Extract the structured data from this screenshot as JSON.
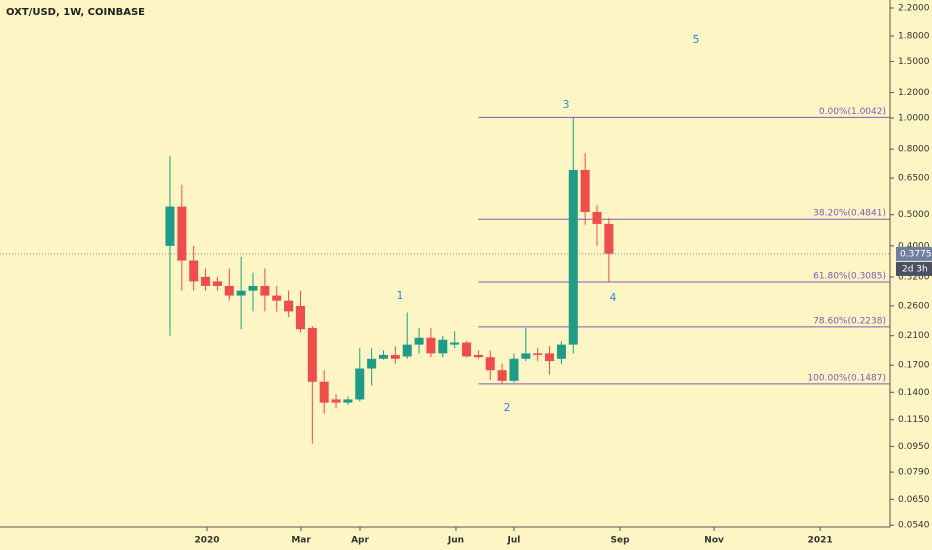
{
  "chart_data": {
    "type": "candlestick",
    "title": "OXT/USD, 1W, COINBASE",
    "log_scale": true,
    "up_color": "#1f9c86",
    "down_color": "#ef4c4c",
    "candles": [
      {
        "open": 0.4,
        "high": 0.76,
        "low": 0.21,
        "close": 0.53
      },
      {
        "open": 0.53,
        "high": 0.62,
        "low": 0.29,
        "close": 0.36
      },
      {
        "open": 0.36,
        "high": 0.4,
        "low": 0.29,
        "close": 0.31
      },
      {
        "open": 0.32,
        "high": 0.34,
        "low": 0.29,
        "close": 0.3
      },
      {
        "open": 0.31,
        "high": 0.32,
        "low": 0.29,
        "close": 0.3
      },
      {
        "open": 0.3,
        "high": 0.34,
        "low": 0.27,
        "close": 0.28
      },
      {
        "open": 0.28,
        "high": 0.37,
        "low": 0.22,
        "close": 0.29
      },
      {
        "open": 0.29,
        "high": 0.33,
        "low": 0.25,
        "close": 0.3
      },
      {
        "open": 0.3,
        "high": 0.34,
        "low": 0.25,
        "close": 0.28
      },
      {
        "open": 0.28,
        "high": 0.3,
        "low": 0.25,
        "close": 0.27
      },
      {
        "open": 0.27,
        "high": 0.29,
        "low": 0.24,
        "close": 0.25
      },
      {
        "open": 0.26,
        "high": 0.29,
        "low": 0.215,
        "close": 0.22
      },
      {
        "open": 0.222,
        "high": 0.225,
        "low": 0.097,
        "close": 0.151
      },
      {
        "open": 0.151,
        "high": 0.164,
        "low": 0.12,
        "close": 0.13
      },
      {
        "open": 0.133,
        "high": 0.138,
        "low": 0.125,
        "close": 0.13
      },
      {
        "open": 0.13,
        "high": 0.136,
        "low": 0.128,
        "close": 0.133
      },
      {
        "open": 0.133,
        "high": 0.192,
        "low": 0.131,
        "close": 0.166
      },
      {
        "open": 0.166,
        "high": 0.192,
        "low": 0.147,
        "close": 0.178
      },
      {
        "open": 0.178,
        "high": 0.189,
        "low": 0.177,
        "close": 0.183
      },
      {
        "open": 0.183,
        "high": 0.195,
        "low": 0.172,
        "close": 0.178
      },
      {
        "open": 0.181,
        "high": 0.248,
        "low": 0.178,
        "close": 0.197
      },
      {
        "open": 0.197,
        "high": 0.222,
        "low": 0.185,
        "close": 0.207
      },
      {
        "open": 0.207,
        "high": 0.222,
        "low": 0.18,
        "close": 0.185
      },
      {
        "open": 0.185,
        "high": 0.21,
        "low": 0.18,
        "close": 0.204
      },
      {
        "open": 0.197,
        "high": 0.217,
        "low": 0.192,
        "close": 0.2
      },
      {
        "open": 0.2,
        "high": 0.202,
        "low": 0.18,
        "close": 0.181
      },
      {
        "open": 0.183,
        "high": 0.189,
        "low": 0.178,
        "close": 0.18
      },
      {
        "open": 0.18,
        "high": 0.189,
        "low": 0.153,
        "close": 0.164
      },
      {
        "open": 0.164,
        "high": 0.172,
        "low": 0.148,
        "close": 0.152
      },
      {
        "open": 0.152,
        "high": 0.185,
        "low": 0.15,
        "close": 0.178
      },
      {
        "open": 0.178,
        "high": 0.222,
        "low": 0.175,
        "close": 0.185
      },
      {
        "open": 0.185,
        "high": 0.192,
        "low": 0.175,
        "close": 0.183
      },
      {
        "open": 0.185,
        "high": 0.195,
        "low": 0.159,
        "close": 0.175
      },
      {
        "open": 0.178,
        "high": 0.202,
        "low": 0.171,
        "close": 0.197
      },
      {
        "open": 0.197,
        "high": 1.0,
        "low": 0.185,
        "close": 0.689
      },
      {
        "open": 0.689,
        "high": 0.778,
        "low": 0.465,
        "close": 0.51
      },
      {
        "open": 0.51,
        "high": 0.536,
        "low": 0.4,
        "close": 0.468
      },
      {
        "open": 0.468,
        "high": 0.488,
        "low": 0.31,
        "close": 0.378
      }
    ],
    "xlim": [
      -14.33,
      60.7
    ],
    "xticks": [
      {
        "value": 3.12,
        "label": "2020"
      },
      {
        "value": 11.05,
        "label": "Mar"
      },
      {
        "value": 16.02,
        "label": "Apr"
      },
      {
        "value": 24.11,
        "label": "Jun"
      },
      {
        "value": 29.0,
        "label": "Jul"
      },
      {
        "value": 37.94,
        "label": "Sep"
      },
      {
        "value": 45.87,
        "label": "Nov"
      },
      {
        "value": 54.81,
        "label": "2021"
      }
    ],
    "ylim": [
      0.0533,
      2.33
    ],
    "yticks": [
      {
        "value": 2.2,
        "label": "2.2000"
      },
      {
        "value": 1.8,
        "label": "1.8000"
      },
      {
        "value": 1.5,
        "label": "1.5000"
      },
      {
        "value": 1.2,
        "label": "1.2000"
      },
      {
        "value": 1.0,
        "label": "1.0000"
      },
      {
        "value": 0.8,
        "label": "0.8000"
      },
      {
        "value": 0.65,
        "label": "0.6500"
      },
      {
        "value": 0.5,
        "label": "0.5000"
      },
      {
        "value": 0.4,
        "label": "0.4000"
      },
      {
        "value": 0.32,
        "label": "0.3200"
      },
      {
        "value": 0.26,
        "label": "0.2600"
      },
      {
        "value": 0.21,
        "label": "0.2100"
      },
      {
        "value": 0.17,
        "label": "0.1700"
      },
      {
        "value": 0.14,
        "label": "0.1400"
      },
      {
        "value": 0.115,
        "label": "0.1150"
      },
      {
        "value": 0.095,
        "label": "0.0950"
      },
      {
        "value": 0.079,
        "label": "0.0790"
      },
      {
        "value": 0.065,
        "label": "0.0650"
      },
      {
        "value": 0.054,
        "label": "0.0540"
      }
    ],
    "fib_levels": [
      {
        "value": 1.0042,
        "label": "0.00%(1.0042)"
      },
      {
        "value": 0.4841,
        "label": "38.20%(0.4841)"
      },
      {
        "value": 0.3085,
        "label": "61.80%(0.3085)"
      },
      {
        "value": 0.2238,
        "label": "78.60%(0.2238)"
      },
      {
        "value": 0.1487,
        "label": "100.00%(0.1487)"
      }
    ],
    "annotations": [
      "1",
      "2",
      "3",
      "4",
      "5"
    ],
    "last_price": {
      "value": 0.3775,
      "label": "0.3775"
    },
    "countdown": "2d 3h"
  }
}
